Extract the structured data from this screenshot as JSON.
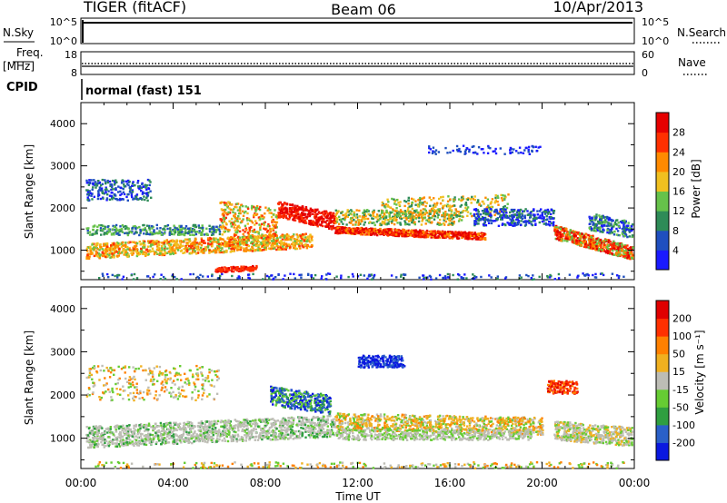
{
  "header": {
    "title": "TIGER (fitACF)",
    "beam": "Beam 06",
    "date": "10/Apr/2013"
  },
  "params": {
    "nsky_label": "N.Sky",
    "nsky_ticks": [
      "10^5",
      "10^0"
    ],
    "nsearch_label": "N.Search",
    "nsearch_ticks": [
      "10^5",
      "10^0"
    ],
    "freq_label_1": "Freq.",
    "freq_label_2": "[MHz]",
    "freq_ticks": [
      "18",
      "8"
    ],
    "nave_label": "Nave",
    "nave_ticks": [
      "60",
      "0"
    ],
    "cpid_label": "CPID",
    "cpid_value": "normal (fast) 151"
  },
  "chart_data": [
    {
      "type": "heatmap",
      "name": "power",
      "ylabel": "Slant Range [km]",
      "yticks": [
        "1000",
        "2000",
        "3000",
        "4000"
      ],
      "ylim": [
        300,
        4500
      ],
      "colorbar_label": "Power [dB]",
      "colorbar_ticks": [
        "4",
        "8",
        "12",
        "16",
        "20",
        "24",
        "28"
      ],
      "colorbar_colors": [
        "#1a1aff",
        "#1f4fbf",
        "#2e8b57",
        "#66c24a",
        "#f0c020",
        "#ff8a00",
        "#ff3000",
        "#e60000"
      ]
    },
    {
      "type": "heatmap",
      "name": "velocity",
      "ylabel": "Slant Range [km]",
      "yticks": [
        "1000",
        "2000",
        "3000",
        "4000"
      ],
      "ylim": [
        300,
        4500
      ],
      "colorbar_label": "Velocity [m s⁻¹]",
      "colorbar_ticks": [
        "200",
        "100",
        "50",
        "15",
        "-15",
        "-50",
        "-100",
        "-200"
      ],
      "colorbar_colors": [
        "#0a18e0",
        "#2a60c8",
        "#2f9f40",
        "#66cc33",
        "#bdbdb5",
        "#f0b020",
        "#ff8000",
        "#ff3000",
        "#e00000"
      ]
    }
  ],
  "xaxis": {
    "ticks": [
      "00:00",
      "04:00",
      "08:00",
      "12:00",
      "16:00",
      "20:00",
      "00:00"
    ],
    "label": "Time UT"
  }
}
